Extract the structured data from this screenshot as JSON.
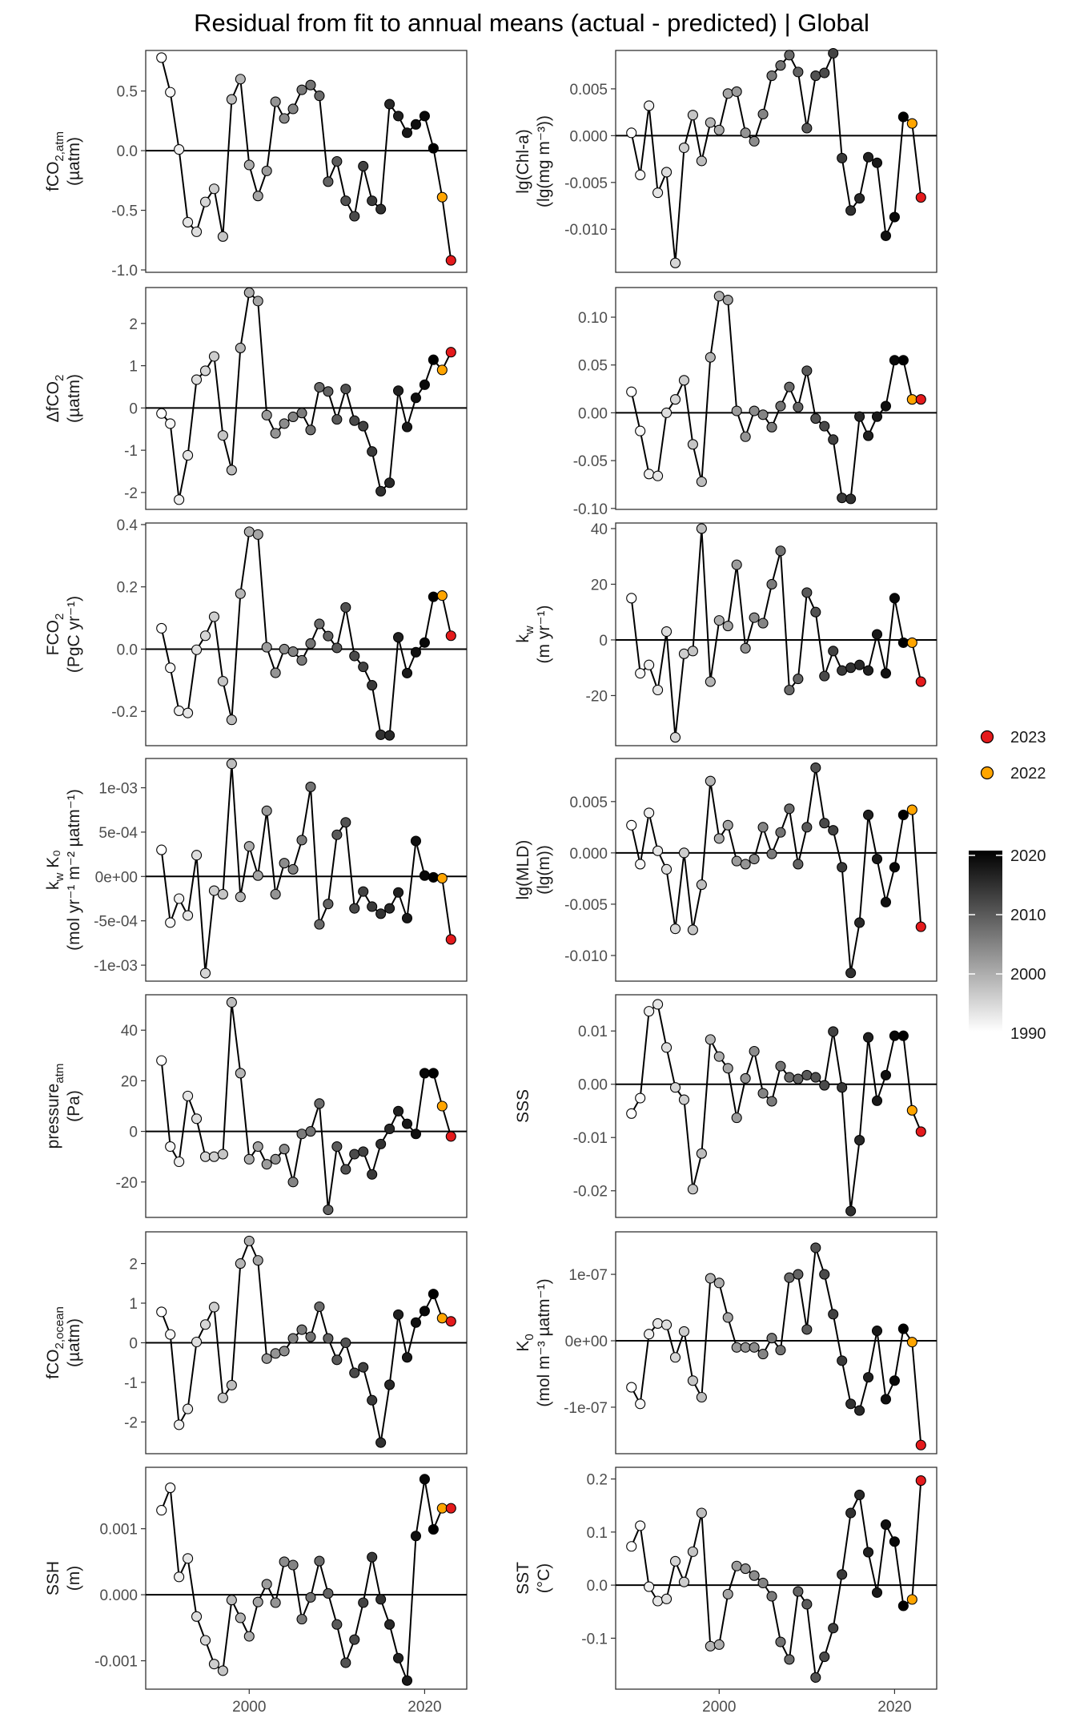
{
  "title": "Residual from fit to annual means (actual - predicted) | Global",
  "colors": {
    "y2023": "#e41a1c",
    "y2022": "#ffa500",
    "line": "#000000",
    "frame": "#333333"
  },
  "legend": {
    "points": [
      {
        "label": "2023",
        "color": "#e41a1c"
      },
      {
        "label": "2022",
        "color": "#ffa500"
      }
    ],
    "colorbar": {
      "labels": [
        "2020",
        "2010",
        "2000",
        "1990"
      ],
      "range": [
        1990,
        2020
      ]
    }
  },
  "chart_data": {
    "type": "line",
    "x_axis": {
      "min": 1988.2,
      "max": 2024.8,
      "ticks": [
        2000,
        2020
      ],
      "tick_labels": [
        "2000",
        "2020"
      ]
    },
    "years": [
      1990,
      1991,
      1992,
      1993,
      1994,
      1995,
      1996,
      1997,
      1998,
      1999,
      2000,
      2001,
      2002,
      2003,
      2004,
      2005,
      2006,
      2007,
      2008,
      2009,
      2010,
      2011,
      2012,
      2013,
      2014,
      2015,
      2016,
      2017,
      2018,
      2019,
      2020,
      2021,
      2022,
      2023
    ],
    "panels": [
      {
        "id": "fco2-atm",
        "ylabel_main": "fCO",
        "ylabel_sub": "2,atm",
        "ylabel_rest": "",
        "ylabel_unit": "(µatm)",
        "ylim": [
          -1.02,
          0.84
        ],
        "yticks": [
          0.5,
          0.0,
          -0.5,
          -1.0
        ],
        "ytick_labels": [
          "0.5",
          "0.0",
          "-0.5",
          "-1.0"
        ],
        "values": [
          0.78,
          0.49,
          0.01,
          -0.6,
          -0.68,
          -0.43,
          -0.32,
          -0.72,
          0.43,
          0.6,
          -0.12,
          -0.38,
          -0.17,
          0.41,
          0.27,
          0.35,
          0.51,
          0.55,
          0.46,
          -0.26,
          -0.09,
          -0.42,
          -0.55,
          -0.13,
          -0.42,
          -0.49,
          0.39,
          0.29,
          0.15,
          0.22,
          0.29,
          0.02,
          -0.39,
          -0.92
        ]
      },
      {
        "id": "chl",
        "ylabel_main": "lg(Chl-a)",
        "ylabel_sub": "",
        "ylabel_rest": "",
        "ylabel_unit": "(lg(mg m⁻³))",
        "ylim": [
          -0.0146,
          0.0091
        ],
        "yticks": [
          0.005,
          0.0,
          -0.005,
          -0.01
        ],
        "ytick_labels": [
          "0.005",
          "0.000",
          "-0.005",
          "-0.010"
        ],
        "values": [
          0.0003,
          -0.0042,
          0.0032,
          -0.0061,
          -0.0039,
          -0.0136,
          -0.0013,
          0.0022,
          -0.0027,
          0.0014,
          0.0006,
          0.0045,
          0.0047,
          0.0003,
          -0.0006,
          0.0023,
          0.0064,
          0.0075,
          0.0086,
          0.0068,
          0.0008,
          0.0064,
          0.0067,
          0.0088,
          -0.0024,
          -0.008,
          -0.0067,
          -0.0023,
          -0.0029,
          -0.0107,
          -0.0087,
          0.002,
          0.0013,
          -0.0066
        ]
      },
      {
        "id": "dfco2",
        "ylabel_main": "ΔfCO",
        "ylabel_sub": "2",
        "ylabel_rest": "",
        "ylabel_unit": "(µatm)",
        "ylim": [
          -2.4,
          2.85
        ],
        "yticks": [
          2,
          1,
          0,
          -1,
          -2
        ],
        "ytick_labels": [
          "2",
          "1",
          "0",
          "-1",
          "-2"
        ],
        "values": [
          -0.13,
          -0.37,
          -2.17,
          -1.12,
          0.67,
          0.88,
          1.22,
          -0.65,
          -1.47,
          1.42,
          2.73,
          2.53,
          -0.17,
          -0.6,
          -0.37,
          -0.21,
          -0.12,
          -0.52,
          0.49,
          0.39,
          -0.27,
          0.45,
          -0.3,
          -0.43,
          -1.03,
          -1.97,
          -1.77,
          0.41,
          -0.45,
          0.24,
          0.55,
          1.14,
          0.9,
          1.32
        ]
      },
      {
        "id": "chl-b",
        "ylabel_main": "",
        "ylabel_sub": "",
        "ylabel_rest": "",
        "ylabel_unit": "",
        "ylim": [
          -0.101,
          0.131
        ],
        "yticks": [
          0.1,
          0.05,
          0.0,
          -0.05,
          -0.1
        ],
        "ytick_labels": [
          "0.10",
          "0.05",
          "0.00",
          "-0.05",
          "-0.10"
        ],
        "values": [
          0.022,
          -0.019,
          -0.064,
          -0.066,
          0.0,
          0.014,
          0.034,
          -0.033,
          -0.072,
          0.058,
          0.122,
          0.118,
          0.002,
          -0.025,
          0.002,
          -0.002,
          -0.015,
          0.007,
          0.027,
          0.006,
          0.044,
          -0.006,
          -0.014,
          -0.028,
          -0.089,
          -0.09,
          -0.004,
          -0.024,
          -0.004,
          0.007,
          0.055,
          0.055,
          0.014,
          0.014
        ]
      },
      {
        "id": "fco2-flux",
        "ylabel_main": "FCO",
        "ylabel_sub": "2",
        "ylabel_rest": "",
        "ylabel_unit": "(PgC yr⁻¹)",
        "ylim": [
          -0.31,
          0.405
        ],
        "yticks": [
          0.4,
          0.2,
          0.0,
          -0.2
        ],
        "ytick_labels": [
          "0.4",
          "0.2",
          "0.0",
          "-0.2"
        ],
        "values": [
          0.067,
          -0.06,
          -0.198,
          -0.205,
          -0.002,
          0.043,
          0.104,
          -0.103,
          -0.227,
          0.178,
          0.377,
          0.368,
          0.006,
          -0.076,
          0.0,
          -0.008,
          -0.036,
          0.018,
          0.081,
          0.042,
          0.004,
          0.134,
          -0.022,
          -0.057,
          -0.116,
          -0.275,
          -0.277,
          0.038,
          -0.077,
          -0.01,
          0.021,
          0.168,
          0.172,
          0.043
        ]
      },
      {
        "id": "kw",
        "ylabel_main": "k",
        "ylabel_sub": "w",
        "ylabel_rest": "",
        "ylabel_unit": "(m yr⁻¹)",
        "ylim": [
          -38,
          42
        ],
        "yticks": [
          40,
          20,
          0,
          -20
        ],
        "ytick_labels": [
          "40",
          "20",
          "0",
          "-20"
        ],
        "values": [
          15,
          -12,
          -9,
          -18,
          3,
          -35,
          -5,
          -4,
          40,
          -15,
          7,
          5,
          27,
          -3,
          8,
          6,
          20,
          32,
          -18,
          -14,
          17,
          10,
          -13,
          -4,
          -11,
          -10,
          -9,
          -11,
          2,
          -12,
          15,
          -1,
          -1,
          -15
        ]
      },
      {
        "id": "kwk0",
        "ylabel_main": "k",
        "ylabel_sub": "w",
        "ylabel_rest": " K₀",
        "ylabel_unit": "(mol yr⁻¹ m⁻² µatm⁻¹)",
        "ylim": [
          -0.00118,
          0.00133
        ],
        "yticks": [
          0.001,
          0.0005,
          0.0,
          -0.0005,
          -0.001
        ],
        "ytick_labels": [
          "1e-03",
          "5e-04",
          "0e+00",
          "-5e-04",
          "-1e-03"
        ],
        "values": [
          0.0003,
          -0.00052,
          -0.00025,
          -0.00044,
          0.00024,
          -0.00109,
          -0.00016,
          -0.0002,
          0.00127,
          -0.00023,
          0.00034,
          1e-05,
          0.00074,
          -0.0002,
          0.00015,
          8e-05,
          0.00041,
          0.00101,
          -0.00054,
          -0.00031,
          0.00047,
          0.00061,
          -0.00036,
          -0.00017,
          -0.00034,
          -0.00042,
          -0.00036,
          -0.00018,
          -0.00047,
          0.0004,
          1e-05,
          -1e-05,
          -2e-05,
          -0.00071
        ]
      },
      {
        "id": "mld",
        "ylabel_main": "lg(MLD)",
        "ylabel_sub": "",
        "ylabel_rest": "",
        "ylabel_unit": "(lg(m))",
        "ylim": [
          -0.0125,
          0.0092
        ],
        "yticks": [
          0.005,
          0.0,
          -0.005,
          -0.01
        ],
        "ytick_labels": [
          "0.005",
          "0.000",
          "-0.005",
          "-0.010"
        ],
        "values": [
          0.0027,
          -0.0011,
          0.0039,
          0.0002,
          -0.0016,
          -0.0074,
          0.0,
          -0.0075,
          -0.0031,
          0.007,
          0.0014,
          0.0027,
          -0.0008,
          -0.0011,
          -0.0006,
          0.0025,
          -0.0001,
          0.002,
          0.0043,
          -0.0011,
          0.0025,
          0.0083,
          0.0029,
          0.0022,
          -0.0014,
          -0.0117,
          -0.0068,
          0.0037,
          -0.0006,
          -0.0048,
          -0.0014,
          0.0037,
          0.0042,
          -0.0072
        ]
      },
      {
        "id": "pressure",
        "ylabel_main": "pressure",
        "ylabel_sub": "atm",
        "ylabel_rest": "",
        "ylabel_unit": "(Pa)",
        "ylim": [
          -34,
          54
        ],
        "yticks": [
          40,
          20,
          0,
          -20
        ],
        "ytick_labels": [
          "40",
          "20",
          "0",
          "-20"
        ],
        "values": [
          28,
          -6,
          -12,
          14,
          5,
          -10,
          -10,
          -9,
          51,
          23,
          -11,
          -6,
          -13,
          -11,
          -7,
          -20,
          -1,
          0,
          11,
          -31,
          -6,
          -15,
          -9,
          -8,
          -17,
          -5,
          1,
          8,
          3,
          -1,
          23,
          23,
          10,
          -2
        ]
      },
      {
        "id": "sss",
        "ylabel_main": "SSS",
        "ylabel_sub": "",
        "ylabel_rest": "",
        "ylabel_unit": "",
        "ylim": [
          -0.025,
          0.0168
        ],
        "yticks": [
          0.01,
          0.0,
          -0.01,
          -0.02
        ],
        "ytick_labels": [
          "0.01",
          "0.00",
          "-0.01",
          "-0.02"
        ],
        "values": [
          -0.0055,
          -0.0026,
          0.0137,
          0.015,
          0.0069,
          -0.0006,
          -0.0029,
          -0.0197,
          -0.013,
          0.0084,
          0.0052,
          0.003,
          -0.0063,
          0.0011,
          0.0062,
          -0.0017,
          -0.0032,
          0.0034,
          0.0013,
          0.001,
          0.0017,
          0.0013,
          -0.0002,
          0.0099,
          -0.0006,
          -0.0238,
          -0.0105,
          0.0088,
          -0.0031,
          0.0017,
          0.0091,
          0.0091,
          -0.0049,
          -0.0089
        ]
      },
      {
        "id": "fco2-ocean",
        "ylabel_main": "fCO",
        "ylabel_sub": "2,ocean",
        "ylabel_rest": "",
        "ylabel_unit": "(µatm)",
        "ylim": [
          -2.8,
          2.8
        ],
        "yticks": [
          2,
          1,
          0,
          -1,
          -2
        ],
        "ytick_labels": [
          "2",
          "1",
          "0",
          "-1",
          "-2"
        ],
        "values": [
          0.78,
          0.21,
          -2.07,
          -1.67,
          0.02,
          0.46,
          0.9,
          -1.39,
          -1.07,
          2.0,
          2.57,
          2.08,
          -0.4,
          -0.27,
          -0.21,
          0.11,
          0.33,
          0.15,
          0.91,
          0.11,
          -0.43,
          0.0,
          -0.76,
          -0.62,
          -1.45,
          -2.52,
          -1.06,
          0.71,
          -0.37,
          0.51,
          0.8,
          1.23,
          0.62,
          0.54
        ]
      },
      {
        "id": "k0",
        "ylabel_main": "K",
        "ylabel_sub": "0",
        "ylabel_rest": "",
        "ylabel_unit": "(mol m⁻³ µatm⁻¹)",
        "ylim": [
          -1.7e-07,
          1.64e-07
        ],
        "yticks": [
          1e-07,
          0,
          -1e-07
        ],
        "ytick_labels": [
          "1e-07",
          "0e+00",
          "-1e-07"
        ],
        "values": [
          -7e-08,
          -9.5e-08,
          1e-08,
          2.6e-08,
          2.4e-08,
          -2.5e-08,
          1.4e-08,
          -6e-08,
          -8.5e-08,
          9.4e-08,
          8.7e-08,
          3.5e-08,
          -1e-08,
          -1e-08,
          -1e-08,
          -2e-08,
          4e-09,
          -1.4e-08,
          9.5e-08,
          1e-07,
          1.7e-08,
          1.4e-07,
          1e-07,
          4e-08,
          -3e-08,
          -9.5e-08,
          -1.05e-07,
          -5.5e-08,
          1.5e-08,
          -8.8e-08,
          -6e-08,
          1.8e-08,
          -2e-09,
          -1.57e-07
        ]
      },
      {
        "id": "ssh",
        "ylabel_main": "SSH",
        "ylabel_sub": "",
        "ylabel_rest": "",
        "ylabel_unit": "(m)",
        "ylim": [
          -0.00143,
          0.00193
        ],
        "yticks": [
          0.001,
          0.0,
          -0.001
        ],
        "ytick_labels": [
          "0.001",
          "0.000",
          "-0.001"
        ],
        "values": [
          0.00128,
          0.00162,
          0.00027,
          0.00055,
          -0.00033,
          -0.00069,
          -0.00105,
          -0.00115,
          -8e-05,
          -0.00035,
          -0.00063,
          -0.00011,
          0.00016,
          -0.00012,
          0.0005,
          0.00045,
          -0.00037,
          -4e-05,
          0.00051,
          2e-05,
          -0.00045,
          -0.00103,
          -0.00068,
          -0.00012,
          0.00057,
          -7e-05,
          -0.00045,
          -0.00096,
          -0.0013,
          0.00089,
          0.00175,
          0.00099,
          0.00131,
          0.00131
        ]
      },
      {
        "id": "sst",
        "ylabel_main": "SST",
        "ylabel_sub": "",
        "ylabel_rest": "",
        "ylabel_unit": "(°C)",
        "ylim": [
          -0.196,
          0.222
        ],
        "yticks": [
          0.2,
          0.1,
          0.0,
          -0.1
        ],
        "ytick_labels": [
          "0.2",
          "0.1",
          "0.0",
          "-0.1"
        ],
        "values": [
          0.073,
          0.112,
          -0.003,
          -0.03,
          -0.026,
          0.045,
          0.006,
          0.063,
          0.136,
          -0.115,
          -0.112,
          -0.017,
          0.036,
          0.031,
          0.018,
          0.004,
          -0.021,
          -0.107,
          -0.14,
          -0.012,
          -0.036,
          -0.174,
          -0.135,
          -0.081,
          0.02,
          0.136,
          0.17,
          0.062,
          -0.014,
          0.114,
          0.082,
          -0.039,
          -0.027,
          0.197
        ]
      }
    ]
  }
}
